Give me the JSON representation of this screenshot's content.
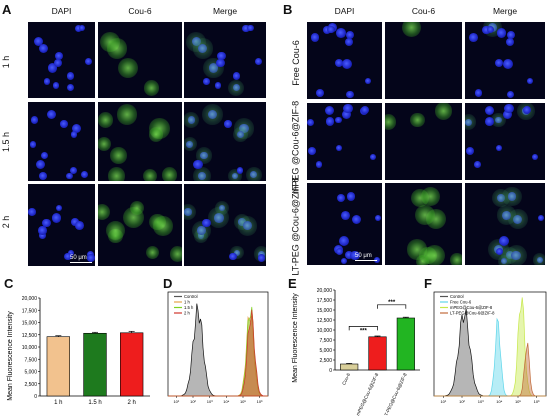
{
  "panels": {
    "A": {
      "label": "A",
      "columns": [
        "DAPI",
        "Cou-6",
        "Merge"
      ],
      "rows": [
        "1 h",
        "1.5 h",
        "2 h"
      ],
      "scale_label": "50 μm"
    },
    "B": {
      "label": "B",
      "columns": [
        "DAPI",
        "Cou-6",
        "Merge"
      ],
      "rows": [
        "Free Cou-6",
        "mPEG @Cou-6@ZIF-8",
        "LT-PEG @Cou-6@ZIF-8"
      ],
      "scale_label": "50 μm"
    },
    "C": {
      "label": "C"
    },
    "D": {
      "label": "D"
    },
    "E": {
      "label": "E"
    },
    "F": {
      "label": "F"
    }
  },
  "chart_data": [
    {
      "panel": "C",
      "type": "bar",
      "ylabel": "Mean Fluorescence Intensity",
      "categories": [
        "1 h",
        "1.5 h",
        "2 h"
      ],
      "values": [
        12100,
        12800,
        12900
      ],
      "errors": [
        200,
        200,
        300
      ],
      "colors": [
        "#f2c28e",
        "#1e7a1e",
        "#ee1d1d"
      ],
      "yticks": [
        "0",
        "2,500",
        "5,000",
        "7,500",
        "10,000",
        "12,500",
        "15,000",
        "17,500",
        "20,000"
      ],
      "ylim": [
        0,
        20000
      ]
    },
    {
      "panel": "D",
      "type": "area",
      "legend": [
        "Control",
        "1 h",
        "1.5 h",
        "2 h"
      ],
      "colors": [
        "#555555",
        "#e6a24b",
        "#7ed321",
        "#d0342c"
      ],
      "xticks": [
        "10¹",
        "10²",
        "10³",
        "10⁴",
        "10⁵",
        "10⁶"
      ]
    },
    {
      "panel": "E",
      "type": "bar",
      "ylabel": "Mean Fluorescence Intensity",
      "categories": [
        "Cou-6",
        "mPEG@Cou-6@ZIF-8",
        "LT-PEG@Cou-6@ZIF-8"
      ],
      "values": [
        1500,
        8300,
        13000
      ],
      "errors": [
        150,
        200,
        200
      ],
      "colors": [
        "#d9cf9a",
        "#ee1d1d",
        "#22b522"
      ],
      "yticks": [
        "0",
        "2,500",
        "5,000",
        "7,500",
        "10,000",
        "12,500",
        "15,000",
        "17,500",
        "20,000"
      ],
      "ylim": [
        0,
        20000
      ],
      "significance": [
        "***",
        "***"
      ]
    },
    {
      "panel": "F",
      "type": "area",
      "legend": [
        "Control",
        "Free Cou-6",
        "mPEG@Cou-6@ZIF-8",
        "LT-PEG@Cou-6@ZIF-8"
      ],
      "colors": [
        "#555555",
        "#5fd6ea",
        "#c6e84a",
        "#c06a3a"
      ],
      "xticks": [
        "10¹",
        "10²",
        "10³",
        "10⁴",
        "10⁵",
        "10⁶"
      ]
    }
  ]
}
